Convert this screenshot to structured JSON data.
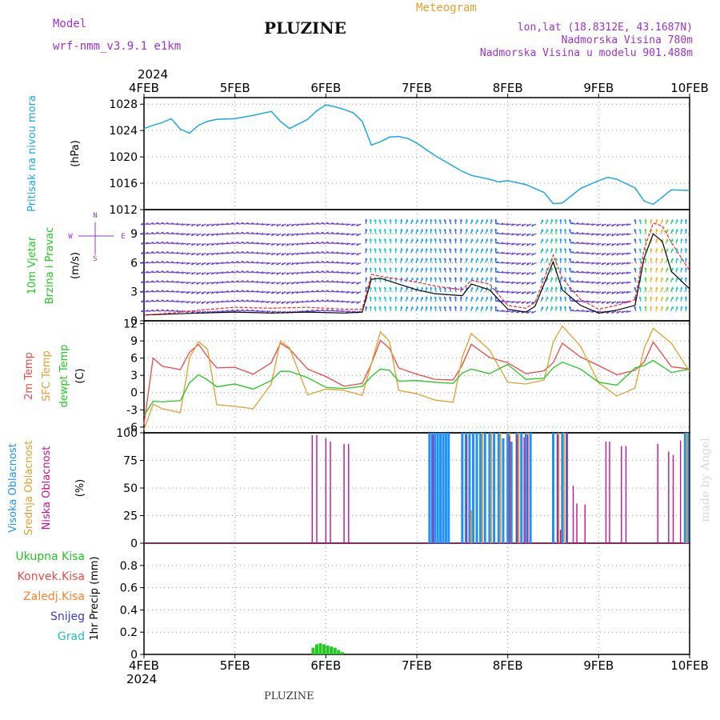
{
  "header": {
    "model_label": "Model",
    "model_name": "wrf-nmm_v3.9.1 e1km",
    "station": "PLUZINE",
    "product": "Meteogram",
    "lonlat": "lon,lat (18.8312E, 43.1687N)",
    "elevation": "Nadmorska Visina 780m",
    "model_elevation": "Nadmorska Visina u modelu 901.488m",
    "footer_station": "PLUZINE",
    "watermark": "made by Angel"
  },
  "colors": {
    "pressure": "#1ea7e6",
    "temp2m": "#f04848",
    "sfc_temp": "#e0a030",
    "dewpt": "#22c822",
    "wind_low": "#8a2be2",
    "gust": "#ff2020",
    "cloud_high": "#1e90ff",
    "cloud_mid": "#e0a030",
    "cloud_low": "#c0148c",
    "precip_total": "#22c822",
    "precip_conv": "#f04848",
    "precip_frz": "#ff8030",
    "precip_snow": "#3838e0",
    "precip_grad": "#20c0c0",
    "title_purple": "#9933cc",
    "meteogram_title": "#e0a030"
  },
  "chart_data": [
    {
      "type": "line",
      "panel": "pressure",
      "ylabel_main": "Pritisak na nivou mora",
      "ylabel_unit": "(hPa)",
      "x_ticks": [
        "4FEB",
        "5FEB",
        "6FEB",
        "7FEB",
        "8FEB",
        "9FEB",
        "10FEB"
      ],
      "x_year": "2024",
      "ylim": [
        1012,
        1029
      ],
      "y_ticks": [
        "1012",
        "1016",
        "1020",
        "1024",
        "1028"
      ],
      "x": [
        0,
        0.1,
        0.2,
        0.3,
        0.4,
        0.5,
        0.6,
        0.7,
        0.8,
        1.0,
        1.2,
        1.4,
        1.5,
        1.6,
        1.8,
        1.9,
        2.0,
        2.1,
        2.2,
        2.3,
        2.4,
        2.5,
        2.6,
        2.7,
        2.8,
        2.9,
        3.0,
        3.2,
        3.4,
        3.5,
        3.6,
        3.8,
        3.9,
        4.0,
        4.2,
        4.4,
        4.5,
        4.6,
        4.8,
        5.0,
        5.1,
        5.2,
        5.4,
        5.5,
        5.6,
        5.8,
        6.0
      ],
      "y": [
        1024.3,
        1024.8,
        1025.2,
        1025.8,
        1024.2,
        1023.6,
        1024.8,
        1025.4,
        1025.7,
        1025.8,
        1026.3,
        1026.9,
        1025.4,
        1024.3,
        1025.7,
        1027.0,
        1027.9,
        1027.6,
        1027.2,
        1026.7,
        1025.4,
        1021.8,
        1022.3,
        1023.0,
        1023.1,
        1022.8,
        1022.1,
        1020.2,
        1018.6,
        1017.8,
        1017.2,
        1016.6,
        1016.2,
        1016.4,
        1015.8,
        1014.6,
        1012.9,
        1013.0,
        1015.2,
        1016.4,
        1016.9,
        1016.6,
        1015.3,
        1013.3,
        1012.8,
        1015.0,
        1014.9
      ],
      "series": [
        {
          "name": "Pritisak na nivou mora"
        }
      ]
    },
    {
      "type": "line",
      "panel": "wind",
      "ylabel_a": "10m Vjetar",
      "ylabel_b": "Brzina i Pravac",
      "ylabel_unit": "(m/s)",
      "compass": {
        "north": "N",
        "south": "S",
        "west": "W",
        "east": "E"
      },
      "ylim": [
        0,
        11.5
      ],
      "y_ticks": [
        "0",
        "3",
        "6",
        "9"
      ],
      "x": [
        0,
        0.3,
        0.6,
        1.0,
        1.4,
        1.8,
        2.2,
        2.4,
        2.5,
        2.6,
        2.8,
        3.0,
        3.2,
        3.5,
        3.6,
        3.8,
        4.0,
        4.2,
        4.3,
        4.5,
        4.6,
        4.8,
        5.0,
        5.2,
        5.4,
        5.5,
        5.6,
        5.7,
        5.8,
        6.0
      ],
      "speed": [
        0.6,
        0.7,
        0.8,
        0.9,
        0.8,
        0.9,
        0.8,
        0.9,
        4.3,
        4.4,
        3.8,
        3.2,
        2.8,
        2.6,
        3.8,
        3.2,
        1.2,
        0.9,
        1.5,
        6.1,
        3.2,
        1.6,
        0.8,
        1.1,
        1.6,
        6.5,
        9.0,
        8.2,
        5.1,
        3.3
      ],
      "gust": [
        0.6,
        0.8,
        1.1,
        1.4,
        1.3,
        1.4,
        1.2,
        1.2,
        4.8,
        4.6,
        4.3,
        4.0,
        3.6,
        3.2,
        4.2,
        3.8,
        1.6,
        1.3,
        1.9,
        6.8,
        4.4,
        2.2,
        1.2,
        1.6,
        2.2,
        7.4,
        10.1,
        9.8,
        8.1,
        5.2
      ]
    },
    {
      "type": "line",
      "panel": "temperature",
      "ylabel_a": "2m Temp",
      "ylabel_b": "SFC Temp",
      "ylabel_c": "dewpt Temp",
      "ylabel_unit": "(C)",
      "ylim": [
        -7,
        12.5
      ],
      "y_ticks": [
        "-6",
        "-3",
        "0",
        "3",
        "6",
        "9",
        "12"
      ],
      "x": [
        0,
        0.1,
        0.2,
        0.4,
        0.5,
        0.6,
        0.7,
        0.8,
        1.0,
        1.2,
        1.4,
        1.5,
        1.6,
        1.8,
        2.0,
        2.2,
        2.4,
        2.5,
        2.6,
        2.7,
        2.8,
        3.0,
        3.2,
        3.4,
        3.5,
        3.6,
        3.8,
        4.0,
        4.2,
        4.4,
        4.5,
        4.6,
        4.8,
        5.0,
        5.2,
        5.4,
        5.5,
        5.6,
        5.8,
        6.0
      ],
      "series": [
        {
          "name": "2m Temp",
          "values": [
            -5.5,
            6.0,
            4.6,
            4.0,
            7.0,
            8.4,
            6.2,
            4.3,
            4.4,
            3.2,
            5.2,
            8.6,
            7.6,
            4.1,
            2.8,
            1.1,
            1.6,
            5.0,
            9.1,
            7.7,
            4.3,
            3.2,
            2.3,
            2.2,
            4.8,
            8.4,
            6.1,
            5.2,
            3.3,
            3.8,
            5.2,
            8.6,
            6.2,
            4.7,
            3.1,
            3.9,
            5.3,
            8.8,
            4.5,
            4.1
          ]
        },
        {
          "name": "SFC Temp",
          "values": [
            -6.5,
            -2.0,
            -2.8,
            -3.5,
            6.0,
            8.9,
            7.5,
            -2.1,
            -2.4,
            -2.8,
            1.5,
            9.0,
            7.8,
            -0.4,
            0.6,
            0.4,
            -0.5,
            5.0,
            10.6,
            8.9,
            0.4,
            -0.2,
            -1.3,
            -1.7,
            6.2,
            10.3,
            7.4,
            1.8,
            1.5,
            2.2,
            8.8,
            11.6,
            8.1,
            1.7,
            -0.6,
            0.8,
            7.7,
            11.2,
            8.6,
            3.7
          ]
        },
        {
          "name": "dewpt Temp",
          "values": [
            -4.0,
            -1.5,
            -1.6,
            -1.4,
            1.7,
            3.1,
            2.2,
            1.0,
            1.5,
            0.6,
            2.1,
            3.7,
            3.7,
            2.6,
            0.9,
            0.7,
            1.1,
            2.8,
            4.1,
            3.9,
            2.0,
            2.1,
            1.8,
            1.6,
            3.4,
            4.1,
            3.3,
            4.9,
            2.3,
            2.5,
            4.3,
            5.3,
            4.1,
            1.8,
            1.3,
            4.3,
            4.7,
            5.6,
            3.5,
            4.1
          ]
        }
      ]
    },
    {
      "type": "bar",
      "panel": "cloud",
      "ylabel_a": "Visoka Oblacnost",
      "ylabel_b": "Srednja Oblacnost",
      "ylabel_c": "Niska Oblacnost",
      "ylabel_unit": "(%)",
      "ylim": [
        0,
        100
      ],
      "y_ticks": [
        "0",
        "25",
        "50",
        "75",
        "100"
      ],
      "series": [
        {
          "name": "Visoka Oblacnost",
          "x": [
            3.14,
            3.17,
            3.2,
            3.23,
            3.26,
            3.29,
            3.32,
            3.35,
            3.5,
            3.54,
            3.58,
            3.62,
            3.66,
            3.7,
            3.75,
            3.8,
            3.85,
            3.9,
            3.95,
            4.0,
            4.04,
            4.1,
            4.15,
            4.2,
            4.25,
            4.5,
            4.55,
            4.6,
            4.65,
            5.95,
            5.98
          ],
          "values": [
            100,
            100,
            100,
            100,
            100,
            100,
            100,
            100,
            100,
            100,
            100,
            100,
            100,
            100,
            100,
            100,
            100,
            100,
            95,
            100,
            92,
            100,
            100,
            100,
            100,
            100,
            100,
            100,
            100,
            100,
            100
          ]
        },
        {
          "name": "Srednja Oblacnost",
          "x": [
            3.6,
            3.72,
            3.82,
            3.92,
            4.02,
            4.12,
            4.22,
            4.56,
            4.62,
            5.97
          ],
          "values": [
            30,
            100,
            100,
            100,
            100,
            100,
            100,
            100,
            100,
            100
          ]
        },
        {
          "name": "Niska Oblacnost",
          "x": [
            1.85,
            1.9,
            2.0,
            2.05,
            2.2,
            2.25,
            3.18,
            3.55,
            4.02,
            4.1,
            4.18,
            4.22,
            4.55,
            4.58,
            4.65,
            4.72,
            4.76,
            4.85,
            5.08,
            5.12,
            5.25,
            5.3,
            5.65,
            5.77,
            5.82,
            5.9
          ],
          "values": [
            98,
            98,
            95,
            92,
            90,
            90,
            98,
            98,
            97,
            98,
            96,
            98,
            98,
            12,
            100,
            52,
            36,
            35,
            92,
            92,
            88,
            88,
            90,
            83,
            80,
            93
          ]
        }
      ]
    },
    {
      "type": "bar",
      "panel": "precip",
      "ylabel_main": "1hr Precip (mm)",
      "legend": [
        "Ukupna Kisa",
        "Konvek.Kisa",
        "Zaledj.Kisa",
        "Snijeg",
        "Grad"
      ],
      "ylim": [
        0,
        1.0
      ],
      "y_ticks": [
        "0",
        "0.2",
        "0.4",
        "0.6",
        "0.8"
      ],
      "x_ticks": [
        "4FEB",
        "5FEB",
        "6FEB",
        "7FEB",
        "8FEB",
        "9FEB",
        "10FEB"
      ],
      "x_year": "2024",
      "series": [
        {
          "name": "Ukupna Kisa",
          "x": [
            1.86,
            1.9,
            1.94,
            1.98,
            2.02,
            2.06,
            2.1,
            2.14,
            2.18
          ],
          "values": [
            0.06,
            0.09,
            0.1,
            0.09,
            0.08,
            0.07,
            0.06,
            0.04,
            0.02
          ]
        }
      ]
    }
  ]
}
